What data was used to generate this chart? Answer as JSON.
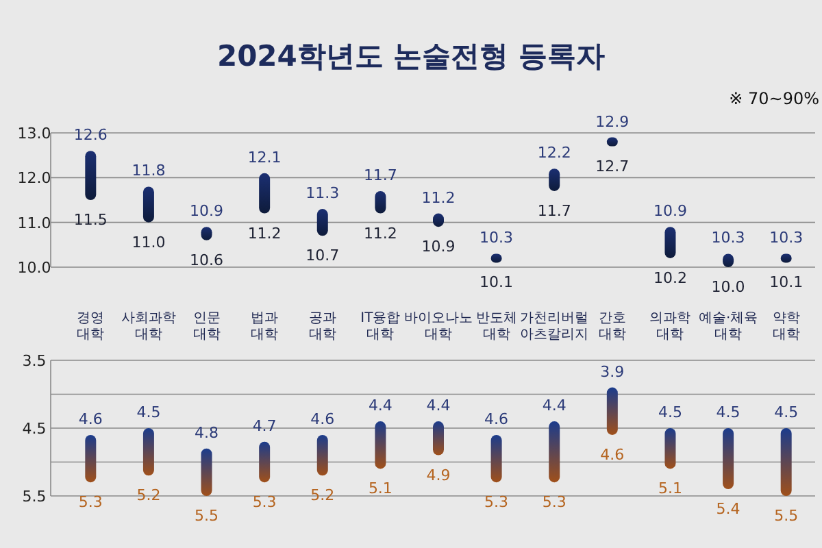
{
  "chart_data": [
    {
      "type": "bar",
      "title": "2024학년도 논술전형 등록자",
      "categories": [
        "경영\n대학",
        "사회과학\n대학",
        "인문\n대학",
        "법과\n대학",
        "공과\n대학",
        "IT융합\n대학",
        "바이오나노\n대학",
        "반도체\n대학",
        "가천리버럴\n아츠칼리지",
        "간호\n대학",
        "의과학\n대학",
        "예술·체육\n대학",
        "약학\n대학"
      ],
      "series": [
        {
          "color": "#1b2f72",
          "base": [
            11.5,
            11.0,
            10.6,
            11.2,
            10.7,
            11.2,
            10.9,
            10.1,
            11.7,
            12.7,
            10.2,
            10.0,
            10.1
          ],
          "values": [
            1.1,
            0.8,
            0.3,
            0.9,
            0.6,
            0.5,
            0.3,
            0.2,
            0.5,
            0.2,
            0.7,
            0.3,
            0.2
          ]
        }
      ],
      "ylim": [
        10,
        13
      ],
      "yticks": [
        {
          "value": 10,
          "label": "10.0"
        },
        {
          "value": 11,
          "label": "11.0"
        },
        {
          "value": 12,
          "label": "12.0"
        },
        {
          "value": 13,
          "label": "13.0"
        }
      ],
      "grid": "y",
      "annotations": [
        "※ 70~90%",
        {
          "text": "12.6",
          "x": "경영\n대학",
          "y": 12.6
        },
        {
          "text": "11.5",
          "x": "경영\n대학",
          "y": 11.5
        },
        {
          "text": "11.8",
          "x": "사회과학\n대학",
          "y": 11.8
        },
        {
          "text": "11.0",
          "x": "사회과학\n대학",
          "y": 11.0
        },
        {
          "text": "10.9",
          "x": "인문\n대학",
          "y": 10.9
        },
        {
          "text": "10.6",
          "x": "인문\n대학",
          "y": 10.6
        },
        {
          "text": "12.1",
          "x": "법과\n대학",
          "y": 12.1
        },
        {
          "text": "11.2",
          "x": "법과\n대학",
          "y": 11.2
        },
        {
          "text": "11.3",
          "x": "공과\n대학",
          "y": 11.3
        },
        {
          "text": "10.7",
          "x": "공과\n대학",
          "y": 10.7
        },
        {
          "text": "11.7",
          "x": "IT융합\n대학",
          "y": 11.7
        },
        {
          "text": "11.2",
          "x": "IT융합\n대학",
          "y": 11.2
        },
        {
          "text": "11.2",
          "x": "바이오나노\n대학",
          "y": 11.2
        },
        {
          "text": "10.9",
          "x": "바이오나노\n대학",
          "y": 10.9
        },
        {
          "text": "10.3",
          "x": "반도체\n대학",
          "y": 10.3
        },
        {
          "text": "10.1",
          "x": "반도체\n대학",
          "y": 10.1
        },
        {
          "text": "12.2",
          "x": "가천리버럴\n아츠칼리지",
          "y": 12.2
        },
        {
          "text": "11.7",
          "x": "가천리버럴\n아츠칼리지",
          "y": 11.7
        },
        {
          "text": "12.9",
          "x": "간호\n대학",
          "y": 12.9
        },
        {
          "text": "12.7",
          "x": "간호\n대학",
          "y": 12.7
        },
        {
          "text": "10.9",
          "x": "의과학\n대학",
          "y": 10.9
        },
        {
          "text": "10.2",
          "x": "의과학\n대학",
          "y": 10.2
        },
        {
          "text": "10.3",
          "x": "예술·체육\n대학",
          "y": 10.3
        },
        {
          "text": "10.0",
          "x": "예술·체육\n대학",
          "y": 10.0
        },
        {
          "text": "10.3",
          "x": "약학\n대학",
          "y": 10.3
        },
        {
          "text": "10.1",
          "x": "약학\n대학",
          "y": 10.1
        }
      ]
    },
    {
      "type": "bar",
      "categories": [
        "경영\n대학",
        "사회과학\n대학",
        "인문\n대학",
        "법과\n대학",
        "공과\n대학",
        "IT융합\n대학",
        "바이오나노\n대학",
        "반도체\n대학",
        "가천리버럴\n아츠칼리지",
        "간호\n대학",
        "의과학\n대학",
        "예술·체육\n대학",
        "약학\n대학"
      ],
      "series": [
        {
          "color": "#1b3c8c",
          "base": [
            4.6,
            4.5,
            4.8,
            4.7,
            4.6,
            4.4,
            4.4,
            4.6,
            4.4,
            3.9,
            4.5,
            4.5,
            4.5
          ],
          "values": [
            0.7,
            0.7,
            0.7,
            0.6,
            0.6,
            0.7,
            0.5,
            0.7,
            0.9,
            0.7,
            0.6,
            0.9,
            1.0
          ]
        }
      ],
      "ylim": [
        5.5,
        3.5
      ],
      "yticks": [
        3.5,
        {
          "value": 4.0,
          "label": null
        },
        4.5,
        {
          "value": 5.0,
          "label": null
        },
        5.5
      ],
      "grid": "y",
      "tick_labels": "y",
      "annotations": [
        {
          "text": "4.6",
          "x": "경영\n대학",
          "y": 4.6
        },
        {
          "text": "5.3",
          "x": "경영\n대학",
          "y": 5.3
        },
        {
          "text": "4.5",
          "x": "사회과학\n대학",
          "y": 4.5
        },
        {
          "text": "5.2",
          "x": "사회과학\n대학",
          "y": 5.2
        },
        {
          "text": "4.8",
          "x": "인문\n대학",
          "y": 4.8
        },
        {
          "text": "5.5",
          "x": "인문\n대학",
          "y": 5.5
        },
        {
          "text": "4.7",
          "x": "법과\n대학",
          "y": 4.7
        },
        {
          "text": "5.3",
          "x": "법과\n대학",
          "y": 5.3
        },
        {
          "text": "4.6",
          "x": "공과\n대학",
          "y": 4.6
        },
        {
          "text": "5.2",
          "x": "공과\n대학",
          "y": 5.2
        },
        {
          "text": "4.4",
          "x": "IT융합\n대학",
          "y": 4.4
        },
        {
          "text": "5.1",
          "x": "IT융합\n대학",
          "y": 5.1
        },
        {
          "text": "4.4",
          "x": "바이오나노\n대학",
          "y": 4.4
        },
        {
          "text": "4.9",
          "x": "바이오나노\n대학",
          "y": 4.9
        },
        {
          "text": "4.6",
          "x": "반도체\n대학",
          "y": 4.6
        },
        {
          "text": "5.3",
          "x": "반도체\n대학",
          "y": 5.3
        },
        {
          "text": "4.4",
          "x": "가천리버럴\n아츠칼리지",
          "y": 4.4
        },
        {
          "text": "5.3",
          "x": "가천리버럴\n아츠칼리지",
          "y": 5.3
        },
        {
          "text": "3.9",
          "x": "간호\n대학",
          "y": 3.9
        },
        {
          "text": "4.6",
          "x": "간호\n대학",
          "y": 4.6
        },
        {
          "text": "4.5",
          "x": "의과학\n대학",
          "y": 4.5
        },
        {
          "text": "5.1",
          "x": "의과학\n대학",
          "y": 5.1
        },
        {
          "text": "4.5",
          "x": "예술·체육\n대학",
          "y": 4.5
        },
        {
          "text": "5.4",
          "x": "예술·체육\n대학",
          "y": 5.4
        },
        {
          "text": "4.5",
          "x": "약학\n대학",
          "y": 4.5
        },
        {
          "text": "5.5",
          "x": "약학\n대학",
          "y": 5.5
        }
      ]
    }
  ]
}
